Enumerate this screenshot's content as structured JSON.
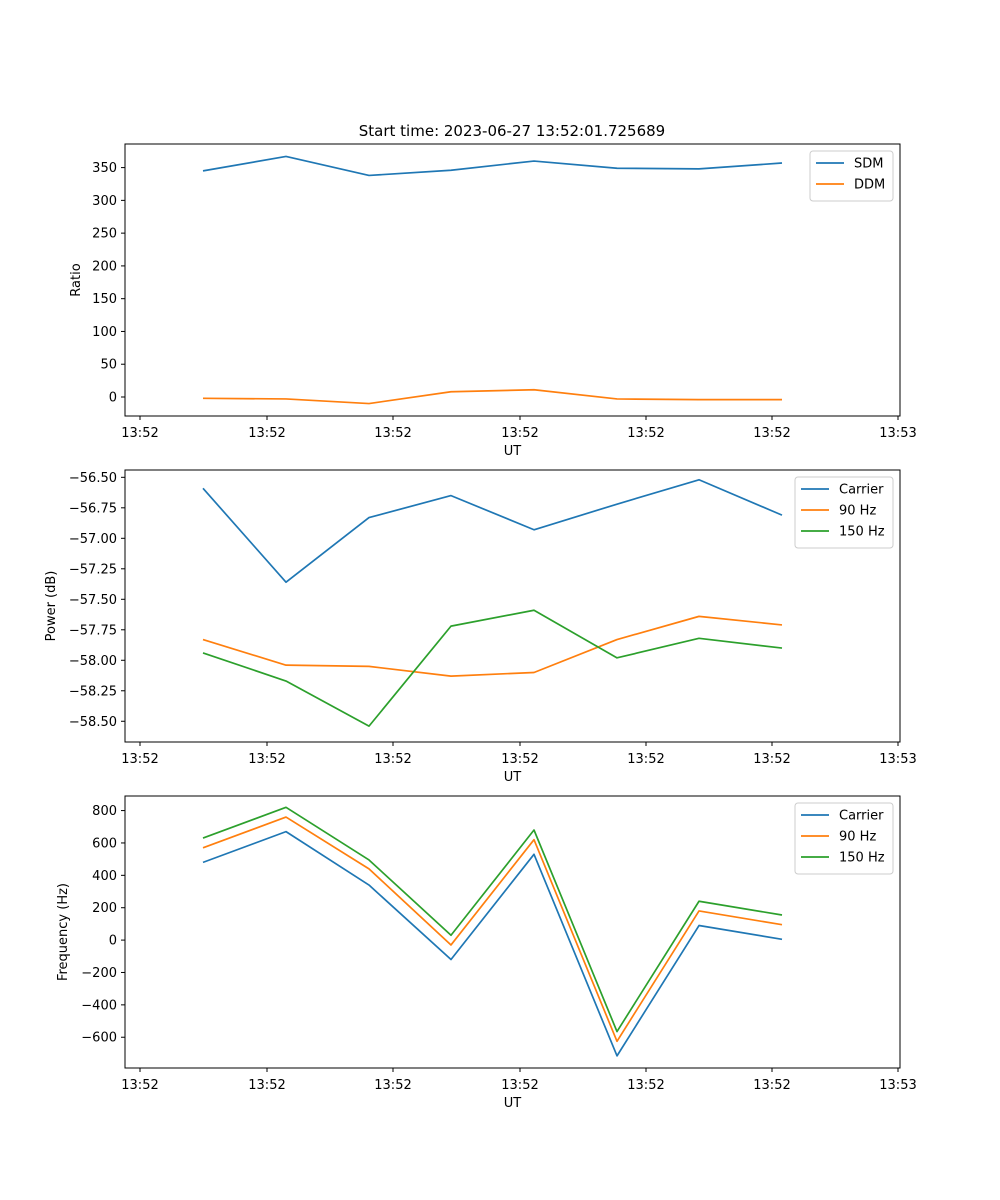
{
  "title": "Start time: 2023-06-27 13:52:01.725689",
  "colors": {
    "blue": "#1f77b4",
    "orange": "#ff7f0e",
    "green": "#2ca02c"
  },
  "chart_data": [
    {
      "type": "line",
      "title": "Start time: 2023-06-27 13:52:01.725689",
      "xlabel": "UT",
      "ylabel": "Ratio",
      "xticks": [
        "13:52",
        "13:52",
        "13:52",
        "13:52",
        "13:52",
        "13:52",
        "13:53"
      ],
      "yticks": [
        "0",
        "50",
        "100",
        "150",
        "200",
        "250",
        "300",
        "350"
      ],
      "ytick_values": [
        0,
        50,
        100,
        150,
        200,
        250,
        300,
        350
      ],
      "ylim": [
        -29,
        386
      ],
      "grid": false,
      "legend_position": "top-right",
      "series": [
        {
          "name": "SDM",
          "color": "#1f77b4",
          "values": [
            345,
            367,
            338,
            346,
            360,
            349,
            348,
            357
          ]
        },
        {
          "name": "DDM",
          "color": "#ff7f0e",
          "values": [
            -2,
            -3,
            -10,
            8,
            11,
            -3,
            -4,
            -4
          ]
        }
      ]
    },
    {
      "type": "line",
      "xlabel": "UT",
      "ylabel": "Power (dB)",
      "xticks": [
        "13:52",
        "13:52",
        "13:52",
        "13:52",
        "13:52",
        "13:52",
        "13:53"
      ],
      "yticks": [
        "−58.50",
        "−58.25",
        "−58.00",
        "−57.75",
        "−57.50",
        "−57.25",
        "−57.00",
        "−56.75",
        "−56.50"
      ],
      "ytick_values": [
        -58.5,
        -58.25,
        -58.0,
        -57.75,
        -57.5,
        -57.25,
        -57.0,
        -56.75,
        -56.5
      ],
      "ylim": [
        -58.67,
        -56.44
      ],
      "grid": false,
      "legend_position": "top-right",
      "series": [
        {
          "name": "Carrier",
          "color": "#1f77b4",
          "values": [
            -56.59,
            -57.36,
            -56.83,
            -56.65,
            -56.93,
            -56.72,
            -56.52,
            -56.81
          ]
        },
        {
          "name": "90 Hz",
          "color": "#ff7f0e",
          "values": [
            -57.83,
            -58.04,
            -58.05,
            -58.13,
            -58.1,
            -57.83,
            -57.64,
            -57.71
          ]
        },
        {
          "name": "150 Hz",
          "color": "#2ca02c",
          "values": [
            -57.94,
            -58.17,
            -58.54,
            -57.72,
            -57.59,
            -57.98,
            -57.82,
            -57.9
          ]
        }
      ]
    },
    {
      "type": "line",
      "xlabel": "UT",
      "ylabel": "Frequency (Hz)",
      "xticks": [
        "13:52",
        "13:52",
        "13:52",
        "13:52",
        "13:52",
        "13:52",
        "13:53"
      ],
      "yticks": [
        "−600",
        "−400",
        "−200",
        "0",
        "200",
        "400",
        "600",
        "800"
      ],
      "ytick_values": [
        -600,
        -400,
        -200,
        0,
        200,
        400,
        600,
        800
      ],
      "ylim": [
        -790,
        890
      ],
      "grid": false,
      "legend_position": "top-right",
      "series": [
        {
          "name": "Carrier",
          "color": "#1f77b4",
          "values": [
            480,
            670,
            340,
            -120,
            530,
            -715,
            90,
            5
          ]
        },
        {
          "name": "90 Hz",
          "color": "#ff7f0e",
          "values": [
            570,
            760,
            440,
            -30,
            620,
            -625,
            180,
            95
          ]
        },
        {
          "name": "150 Hz",
          "color": "#2ca02c",
          "values": [
            630,
            820,
            495,
            30,
            680,
            -565,
            240,
            155
          ]
        }
      ]
    }
  ]
}
